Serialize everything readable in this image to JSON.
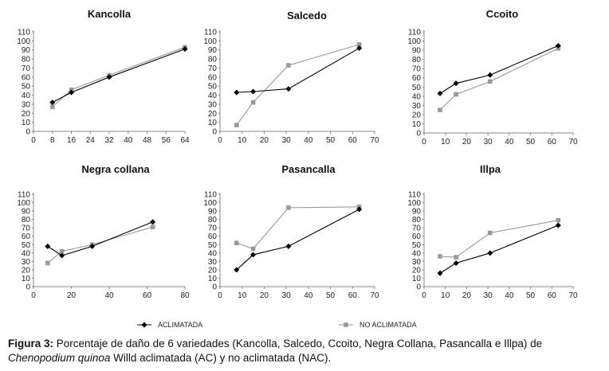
{
  "chart_data": [
    {
      "type": "line",
      "title": "Kancolla",
      "xticks": [
        "0",
        "8",
        "16",
        "24",
        "32",
        "40",
        "48",
        "56",
        "64"
      ],
      "xlim": [
        0,
        64
      ],
      "yticks": [
        "0",
        "10",
        "20",
        "30",
        "40",
        "50",
        "60",
        "70",
        "80",
        "90",
        "100",
        "110"
      ],
      "ylim": [
        0,
        110
      ],
      "series": [
        {
          "name": "ACLIMATADA",
          "color": "#000000",
          "marker": "diamond",
          "x": [
            8,
            16,
            32,
            64
          ],
          "y": [
            32,
            43,
            60,
            91
          ]
        },
        {
          "name": "NO ACLIMATADA",
          "color": "#999999",
          "marker": "square",
          "x": [
            8,
            16,
            32,
            64
          ],
          "y": [
            27,
            46,
            62,
            93
          ]
        }
      ]
    },
    {
      "type": "line",
      "title": "Salcedo",
      "xticks": [
        "0",
        "10",
        "20",
        "30",
        "40",
        "50",
        "60",
        "70"
      ],
      "xlim": [
        0,
        70
      ],
      "yticks": [
        "0",
        "10",
        "20",
        "30",
        "40",
        "50",
        "60",
        "70",
        "80",
        "90",
        "100",
        "110"
      ],
      "ylim": [
        0,
        110
      ],
      "series": [
        {
          "name": "ACLIMATADA",
          "color": "#000000",
          "marker": "diamond",
          "x": [
            7.5,
            15,
            31,
            63
          ],
          "y": [
            43,
            44,
            47,
            92
          ]
        },
        {
          "name": "NO ACLIMATADA",
          "color": "#999999",
          "marker": "square",
          "x": [
            7.5,
            15,
            31,
            63
          ],
          "y": [
            7,
            32,
            73,
            96
          ]
        }
      ]
    },
    {
      "type": "line",
      "title": "Ccoito",
      "xticks": [
        "0",
        "10",
        "20",
        "30",
        "40",
        "50",
        "60",
        "70"
      ],
      "xlim": [
        0,
        70
      ],
      "yticks": [
        "0",
        "10",
        "20",
        "30",
        "40",
        "50",
        "60",
        "70",
        "80",
        "90",
        "100",
        "110"
      ],
      "ylim": [
        0,
        110
      ],
      "series": [
        {
          "name": "ACLIMATADA",
          "color": "#000000",
          "marker": "diamond",
          "x": [
            7.5,
            15,
            31,
            63
          ],
          "y": [
            43,
            54,
            63,
            95
          ]
        },
        {
          "name": "NO ACLIMATADA",
          "color": "#999999",
          "marker": "square",
          "x": [
            7.5,
            15,
            31,
            63
          ],
          "y": [
            25,
            42,
            56,
            92
          ]
        }
      ]
    },
    {
      "type": "line",
      "title": "Negra collana",
      "xticks": [
        "0",
        "20",
        "40",
        "60",
        "80"
      ],
      "xlim": [
        0,
        80
      ],
      "yticks": [
        "0",
        "10",
        "20",
        "30",
        "40",
        "50",
        "60",
        "70",
        "80",
        "90",
        "100",
        "110"
      ],
      "ylim": [
        0,
        110
      ],
      "series": [
        {
          "name": "ACLIMATADA",
          "color": "#000000",
          "marker": "diamond",
          "x": [
            7.5,
            15,
            31,
            63
          ],
          "y": [
            48,
            37,
            48,
            77
          ]
        },
        {
          "name": "NO ACLIMATADA",
          "color": "#999999",
          "marker": "square",
          "x": [
            7.5,
            15,
            31,
            63
          ],
          "y": [
            28,
            42,
            50,
            71
          ]
        }
      ]
    },
    {
      "type": "line",
      "title": "Pasancalla",
      "xticks": [
        "0",
        "10",
        "20",
        "30",
        "40",
        "50",
        "60",
        "70"
      ],
      "xlim": [
        0,
        70
      ],
      "yticks": [
        "0",
        "10",
        "20",
        "30",
        "40",
        "50",
        "60",
        "70",
        "80",
        "90",
        "100",
        "110"
      ],
      "ylim": [
        0,
        110
      ],
      "series": [
        {
          "name": "ACLIMATADA",
          "color": "#000000",
          "marker": "diamond",
          "x": [
            7.5,
            15,
            31,
            63
          ],
          "y": [
            20,
            38,
            48,
            92
          ]
        },
        {
          "name": "NO ACLIMATADA",
          "color": "#999999",
          "marker": "square",
          "x": [
            7.5,
            15,
            31,
            63
          ],
          "y": [
            52,
            45,
            94,
            95
          ]
        }
      ]
    },
    {
      "type": "line",
      "title": "Illpa",
      "xticks": [
        "0",
        "10",
        "20",
        "30",
        "40",
        "50",
        "60",
        "70"
      ],
      "xlim": [
        0,
        70
      ],
      "yticks": [
        "0",
        "10",
        "20",
        "30",
        "40",
        "50",
        "60",
        "70",
        "80",
        "90",
        "100",
        "110"
      ],
      "ylim": [
        0,
        110
      ],
      "series": [
        {
          "name": "ACLIMATADA",
          "color": "#000000",
          "marker": "diamond",
          "x": [
            7.5,
            15,
            31,
            63
          ],
          "y": [
            16,
            28,
            40,
            73
          ]
        },
        {
          "name": "NO ACLIMATADA",
          "color": "#999999",
          "marker": "square",
          "x": [
            7.5,
            15,
            31,
            63
          ],
          "y": [
            36,
            35,
            64,
            79
          ]
        }
      ]
    }
  ],
  "legend": {
    "placement": "bottom",
    "items": [
      {
        "label": "ACLIMATADA",
        "color": "#000000",
        "marker": "diamond"
      },
      {
        "label": "NO ACLIMATADA",
        "color": "#999999",
        "marker": "square"
      }
    ]
  },
  "caption": {
    "lead": "Figura 3:",
    "text1": " Porcentaje de daño de 6 variedades (Kancolla, Salcedo, Ccoito, Negra Collana, Pasancalla e Illpa) de ",
    "species": "Chenopodium quinoa",
    "text2": " Willd aclimatada (AC) y no aclimatada (NAC)."
  }
}
